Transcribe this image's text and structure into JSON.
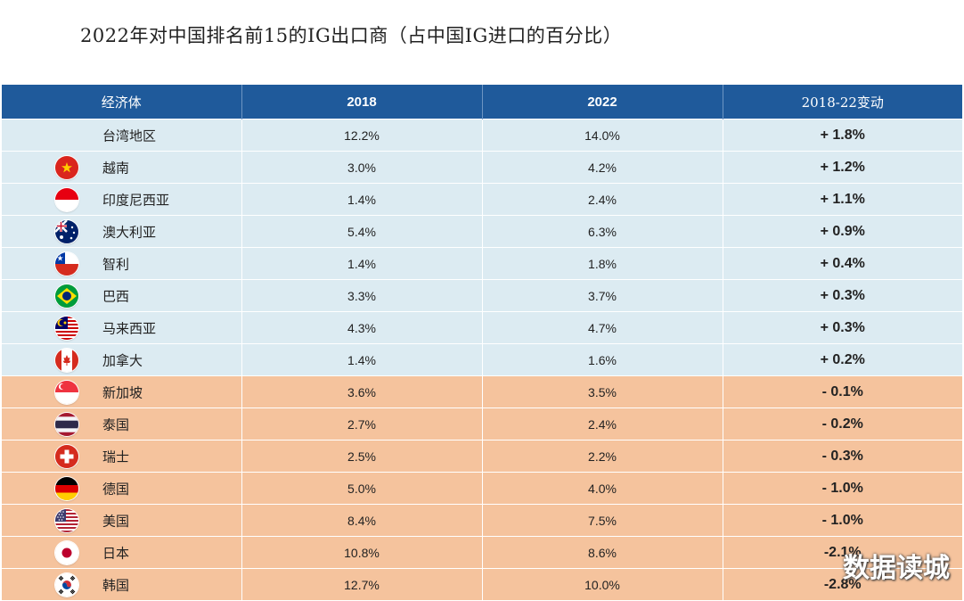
{
  "chart_data": {
    "type": "table",
    "title": "2022年对中国排名前15的IG出口商（占中国IG进口的百分比）",
    "columns": [
      "经济体",
      "2018",
      "2022",
      "2018-22变动"
    ],
    "rows": [
      {
        "economy": "台湾地区",
        "v2018": "12.2%",
        "v2022": "14.0%",
        "change": "+ 1.8%",
        "flag": "none",
        "group": "pos"
      },
      {
        "economy": "越南",
        "v2018": "3.0%",
        "v2022": "4.2%",
        "change": "+ 1.2%",
        "flag": "vietnam-flag-icon",
        "group": "pos"
      },
      {
        "economy": "印度尼西亚",
        "v2018": "1.4%",
        "v2022": "2.4%",
        "change": "+ 1.1%",
        "flag": "indonesia-flag-icon",
        "group": "pos"
      },
      {
        "economy": "澳大利亚",
        "v2018": "5.4%",
        "v2022": "6.3%",
        "change": "+ 0.9%",
        "flag": "australia-flag-icon",
        "group": "pos"
      },
      {
        "economy": "智利",
        "v2018": "1.4%",
        "v2022": "1.8%",
        "change": "+ 0.4%",
        "flag": "chile-flag-icon",
        "group": "pos"
      },
      {
        "economy": "巴西",
        "v2018": "3.3%",
        "v2022": "3.7%",
        "change": "+ 0.3%",
        "flag": "brazil-flag-icon",
        "group": "pos"
      },
      {
        "economy": "马来西亚",
        "v2018": "4.3%",
        "v2022": "4.7%",
        "change": "+ 0.3%",
        "flag": "malaysia-flag-icon",
        "group": "pos"
      },
      {
        "economy": "加拿大",
        "v2018": "1.4%",
        "v2022": "1.6%",
        "change": "+ 0.2%",
        "flag": "canada-flag-icon",
        "group": "pos"
      },
      {
        "economy": "新加坡",
        "v2018": "3.6%",
        "v2022": "3.5%",
        "change": "- 0.1%",
        "flag": "singapore-flag-icon",
        "group": "neg"
      },
      {
        "economy": "泰国",
        "v2018": "2.7%",
        "v2022": "2.4%",
        "change": "- 0.2%",
        "flag": "thailand-flag-icon",
        "group": "neg"
      },
      {
        "economy": "瑞士",
        "v2018": "2.5%",
        "v2022": "2.2%",
        "change": "- 0.3%",
        "flag": "switzerland-flag-icon",
        "group": "neg"
      },
      {
        "economy": "德国",
        "v2018": "5.0%",
        "v2022": "4.0%",
        "change": "- 1.0%",
        "flag": "germany-flag-icon",
        "group": "neg"
      },
      {
        "economy": "美国",
        "v2018": "8.4%",
        "v2022": "7.5%",
        "change": "- 1.0%",
        "flag": "usa-flag-icon",
        "group": "neg"
      },
      {
        "economy": "日本",
        "v2018": "10.8%",
        "v2022": "8.6%",
        "change": "-2.1%",
        "flag": "japan-flag-icon",
        "group": "neg"
      },
      {
        "economy": "韩国",
        "v2018": "12.7%",
        "v2022": "10.0%",
        "change": "-2.8%",
        "flag": "korea-flag-icon",
        "group": "neg"
      }
    ]
  },
  "colors": {
    "header_bg": "#1f5a9b",
    "increase_row_bg": "#dcebf2",
    "decrease_row_bg": "#f5c39d"
  },
  "watermark": "数据读城"
}
